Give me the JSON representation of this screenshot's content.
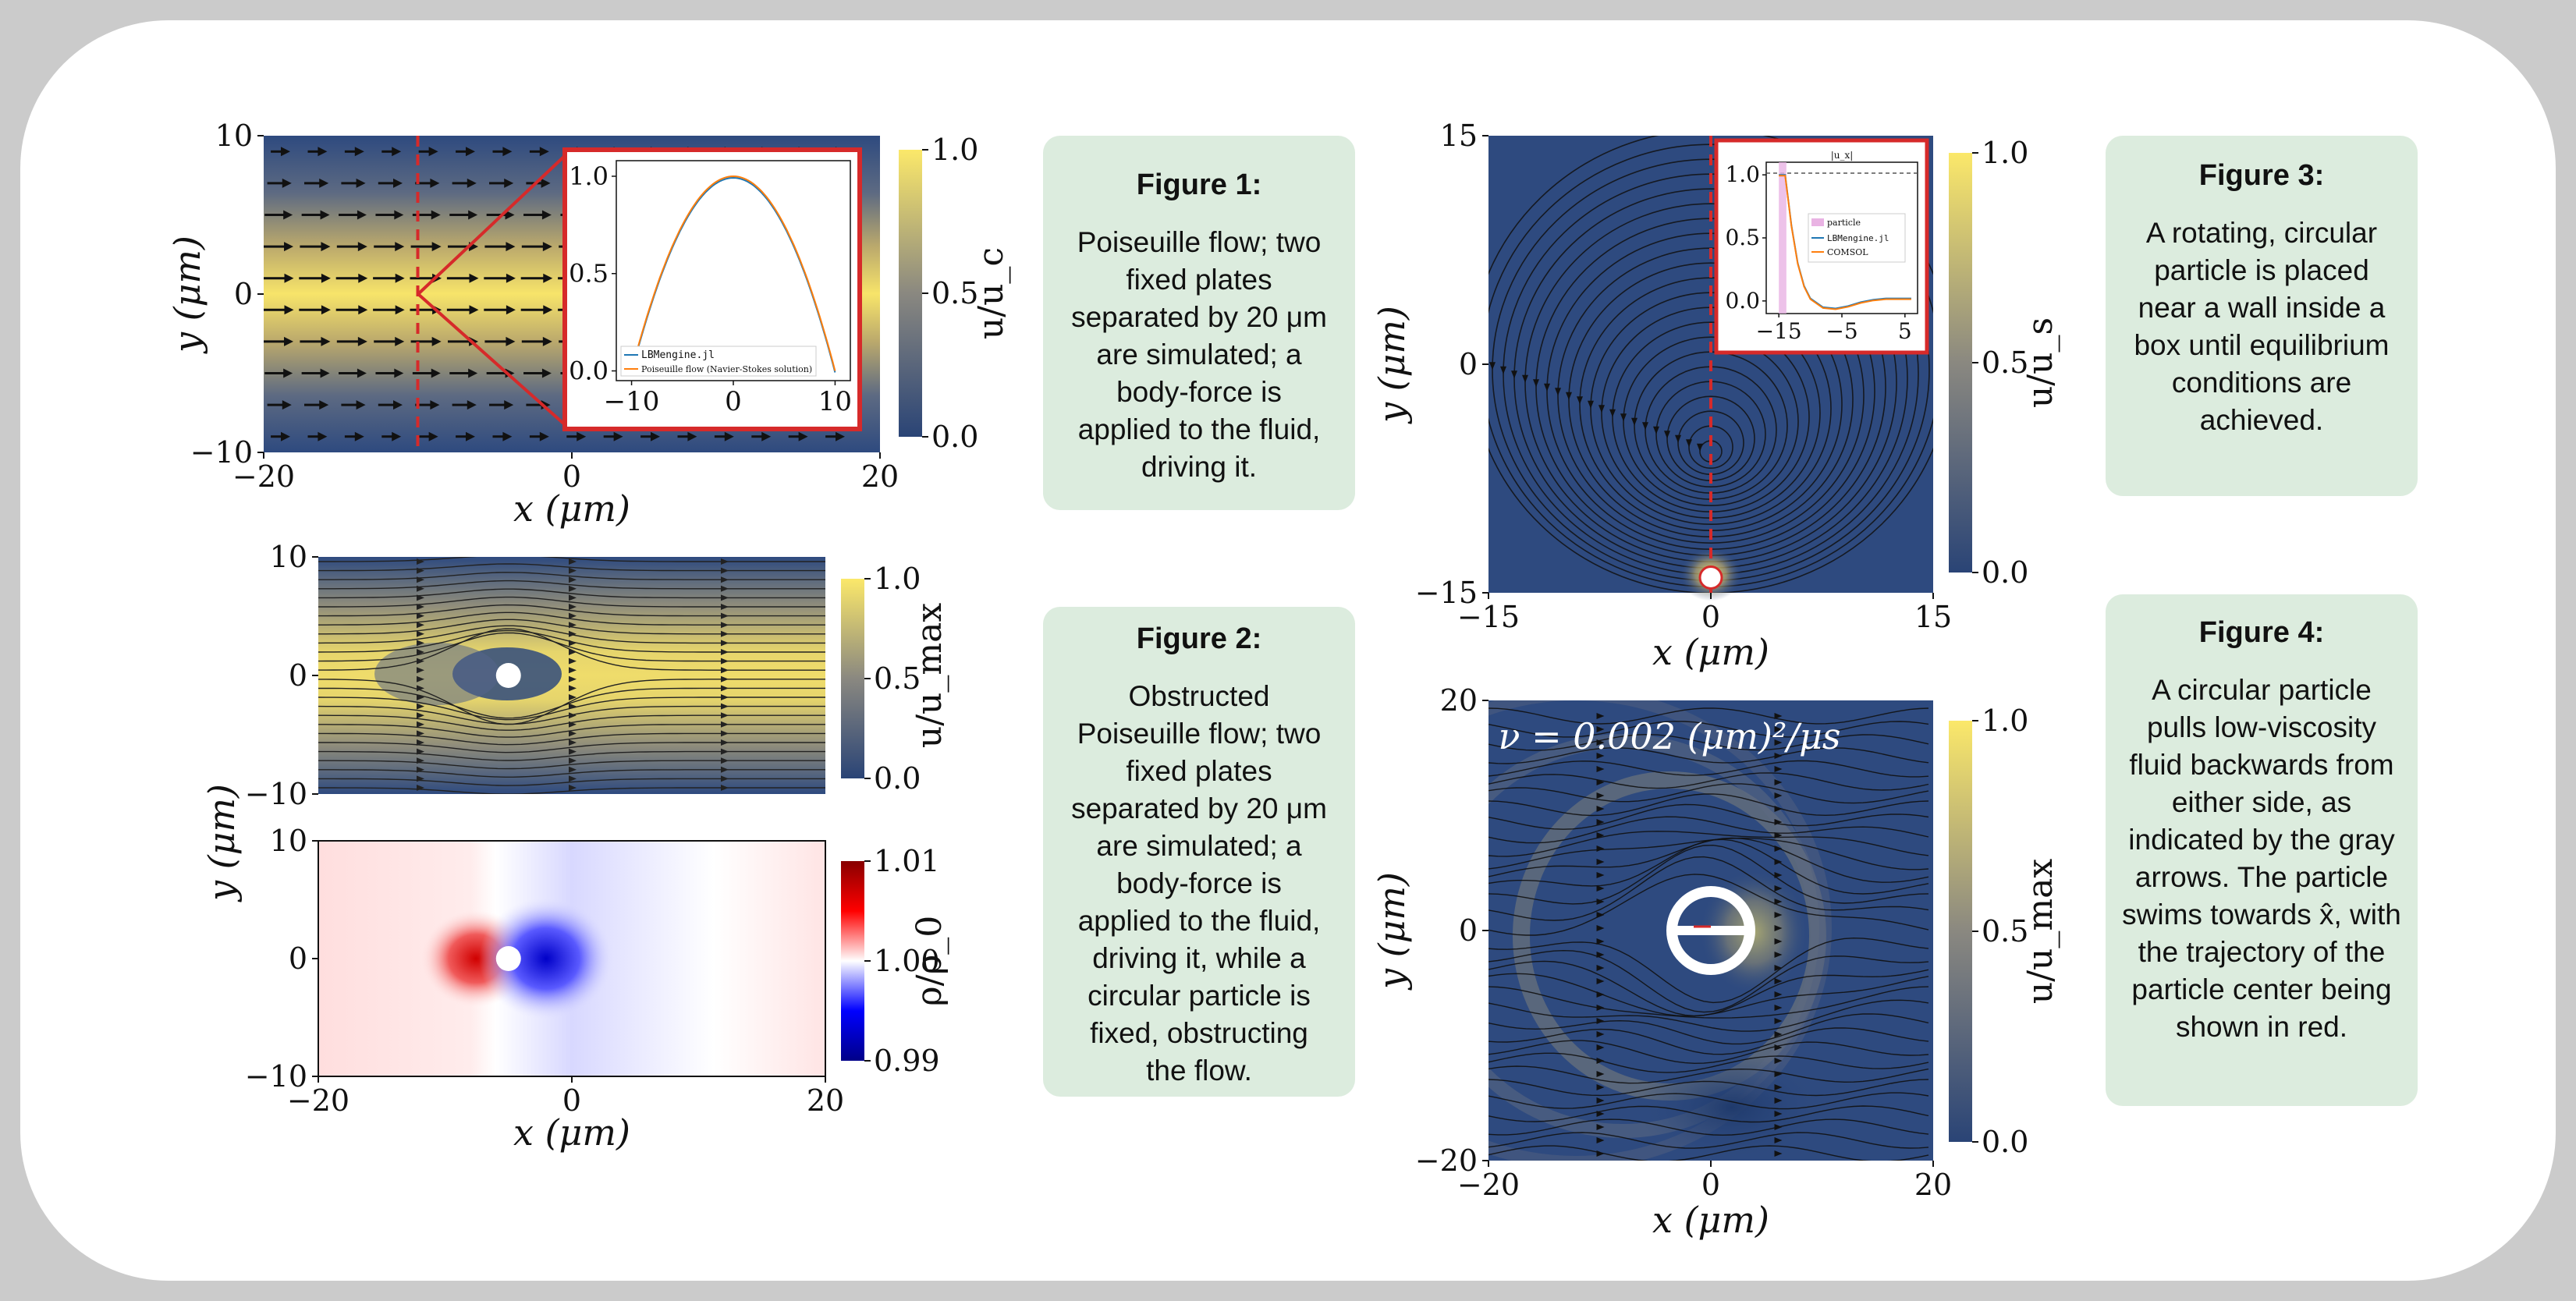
{
  "notes": [
    {
      "title": "Figure 1:",
      "body": "Poiseuille flow; two fixed plates separated by 20 μm are simulated; a body-force is applied to the fluid, driving it."
    },
    {
      "title": "Figure 2:",
      "body": "Obstructed Poiseuille flow; two fixed plates separated by 20 μm are simulated; a body-force is applied to the fluid, driving it, while a circular particle is fixed, obstructing the flow."
    },
    {
      "title": "Figure 3:",
      "body": "A rotating, circular particle is placed near a wall inside a box until equilibrium conditions are achieved."
    },
    {
      "title": "Figure 4:",
      "body": "A circular particle pulls low-viscosity fluid backwards from either side, as indicated by the gray arrows. The particle swims towards x̂, with the trajectory of the particle center being shown in red."
    }
  ],
  "colors": {
    "low": "#2e4a7f",
    "mid": "#8e8a80",
    "high": "#f5e26a",
    "red": "#d62a2a",
    "blue": "#0000cc",
    "inset_blue": "#1f77b4",
    "inset_orange": "#ff7f0e"
  },
  "chart_data": [
    {
      "type": "heatmap",
      "xlabel": "x (μm)",
      "ylabel": "y (μm)",
      "xticks": [
        "−20",
        "0",
        "20"
      ],
      "yticks": [
        "−10",
        "0",
        "10"
      ],
      "xlim": [
        -20,
        20
      ],
      "ylim": [
        -10,
        10
      ],
      "colorbar": {
        "label": "u/u_c",
        "ticks": [
          "0.0",
          "0.5",
          "1.0"
        ],
        "range": [
          0,
          1
        ]
      },
      "marker_line_x": -10,
      "inset": {
        "type": "line",
        "xticks": [
          "−10",
          "0",
          "10"
        ],
        "yticks": [
          "0.0",
          "0.5",
          "1.0"
        ],
        "x": [
          -10,
          -8,
          -6,
          -4,
          -2,
          0,
          2,
          4,
          6,
          8,
          10
        ],
        "series": [
          {
            "name": "LBMengine.jl",
            "values": [
              0,
              0.36,
              0.64,
              0.84,
              0.96,
              1.0,
              0.96,
              0.84,
              0.64,
              0.36,
              0
            ]
          },
          {
            "name": "Poiseuille flow (Navier-Stokes solution)",
            "values": [
              0,
              0.36,
              0.64,
              0.84,
              0.96,
              1.0,
              0.96,
              0.84,
              0.64,
              0.36,
              0
            ]
          }
        ]
      }
    },
    {
      "type": "heatmap",
      "xlabel": "",
      "ylabel": "y (μm)",
      "xticks": [],
      "yticks": [
        "−10",
        "0",
        "10"
      ],
      "xlim": [
        -20,
        20
      ],
      "ylim": [
        -10,
        10
      ],
      "colorbar": {
        "label": "u/u_max",
        "ticks": [
          "0.0",
          "0.5",
          "1.0"
        ],
        "range": [
          0,
          1
        ]
      },
      "particle": {
        "x": -5,
        "y": 0
      }
    },
    {
      "type": "heatmap",
      "xlabel": "x (μm)",
      "ylabel": "y (μm)",
      "xticks": [
        "−20",
        "0",
        "20"
      ],
      "yticks": [
        "−10",
        "0",
        "10"
      ],
      "xlim": [
        -20,
        20
      ],
      "ylim": [
        -10,
        10
      ],
      "colorbar": {
        "label": "ρ/ρ_0",
        "ticks": [
          "0.99",
          "1.00",
          "1.01"
        ],
        "range": [
          0.99,
          1.01
        ]
      },
      "particle": {
        "x": -5,
        "y": 0
      }
    },
    {
      "type": "heatmap",
      "xlabel": "x (μm)",
      "ylabel": "y (μm)",
      "xticks": [
        "−15",
        "0",
        "15"
      ],
      "yticks": [
        "−15",
        "0",
        "15"
      ],
      "xlim": [
        -15,
        15
      ],
      "ylim": [
        -15,
        15
      ],
      "colorbar": {
        "label": "u/u_s",
        "ticks": [
          "0.0",
          "0.5",
          "1.0"
        ],
        "range": [
          0,
          1
        ]
      },
      "marker_line_x": 0,
      "particle": {
        "x": 0,
        "y": -14
      },
      "inset": {
        "type": "line",
        "title": "|u_x|",
        "xticks": [
          "−15",
          "−5",
          "5"
        ],
        "yticks": [
          "0.0",
          "0.5",
          "1.0"
        ],
        "x": [
          -15,
          -14,
          -13,
          -12,
          -11,
          -10,
          -8,
          -6,
          -4,
          -2,
          0,
          2,
          4,
          6
        ],
        "series": [
          {
            "name": "LBMengine.jl",
            "values": [
              1.0,
              1.0,
              0.6,
              0.3,
              0.12,
              0.02,
              -0.05,
              -0.06,
              -0.04,
              -0.01,
              0.01,
              0.02,
              0.02,
              0.02
            ]
          },
          {
            "name": "COMSOL",
            "values": [
              1.0,
              1.0,
              0.6,
              0.3,
              0.12,
              0.02,
              -0.05,
              -0.06,
              -0.04,
              -0.01,
              0.01,
              0.02,
              0.02,
              0.02
            ]
          }
        ],
        "legend": [
          "particle",
          "LBMengine.jl",
          "COMSOL"
        ]
      }
    },
    {
      "type": "heatmap",
      "annotation": "ν = 0.002 (μm)²/μs",
      "xlabel": "x (μm)",
      "ylabel": "y (μm)",
      "xticks": [
        "−20",
        "0",
        "20"
      ],
      "yticks": [
        "−20",
        "0",
        "20"
      ],
      "xlim": [
        -20,
        20
      ],
      "ylim": [
        -20,
        20
      ],
      "colorbar": {
        "label": "u/u_max",
        "ticks": [
          "0.0",
          "0.5",
          "1.0"
        ],
        "range": [
          0,
          1
        ]
      },
      "particle": {
        "x": 0,
        "y": 0
      }
    }
  ]
}
